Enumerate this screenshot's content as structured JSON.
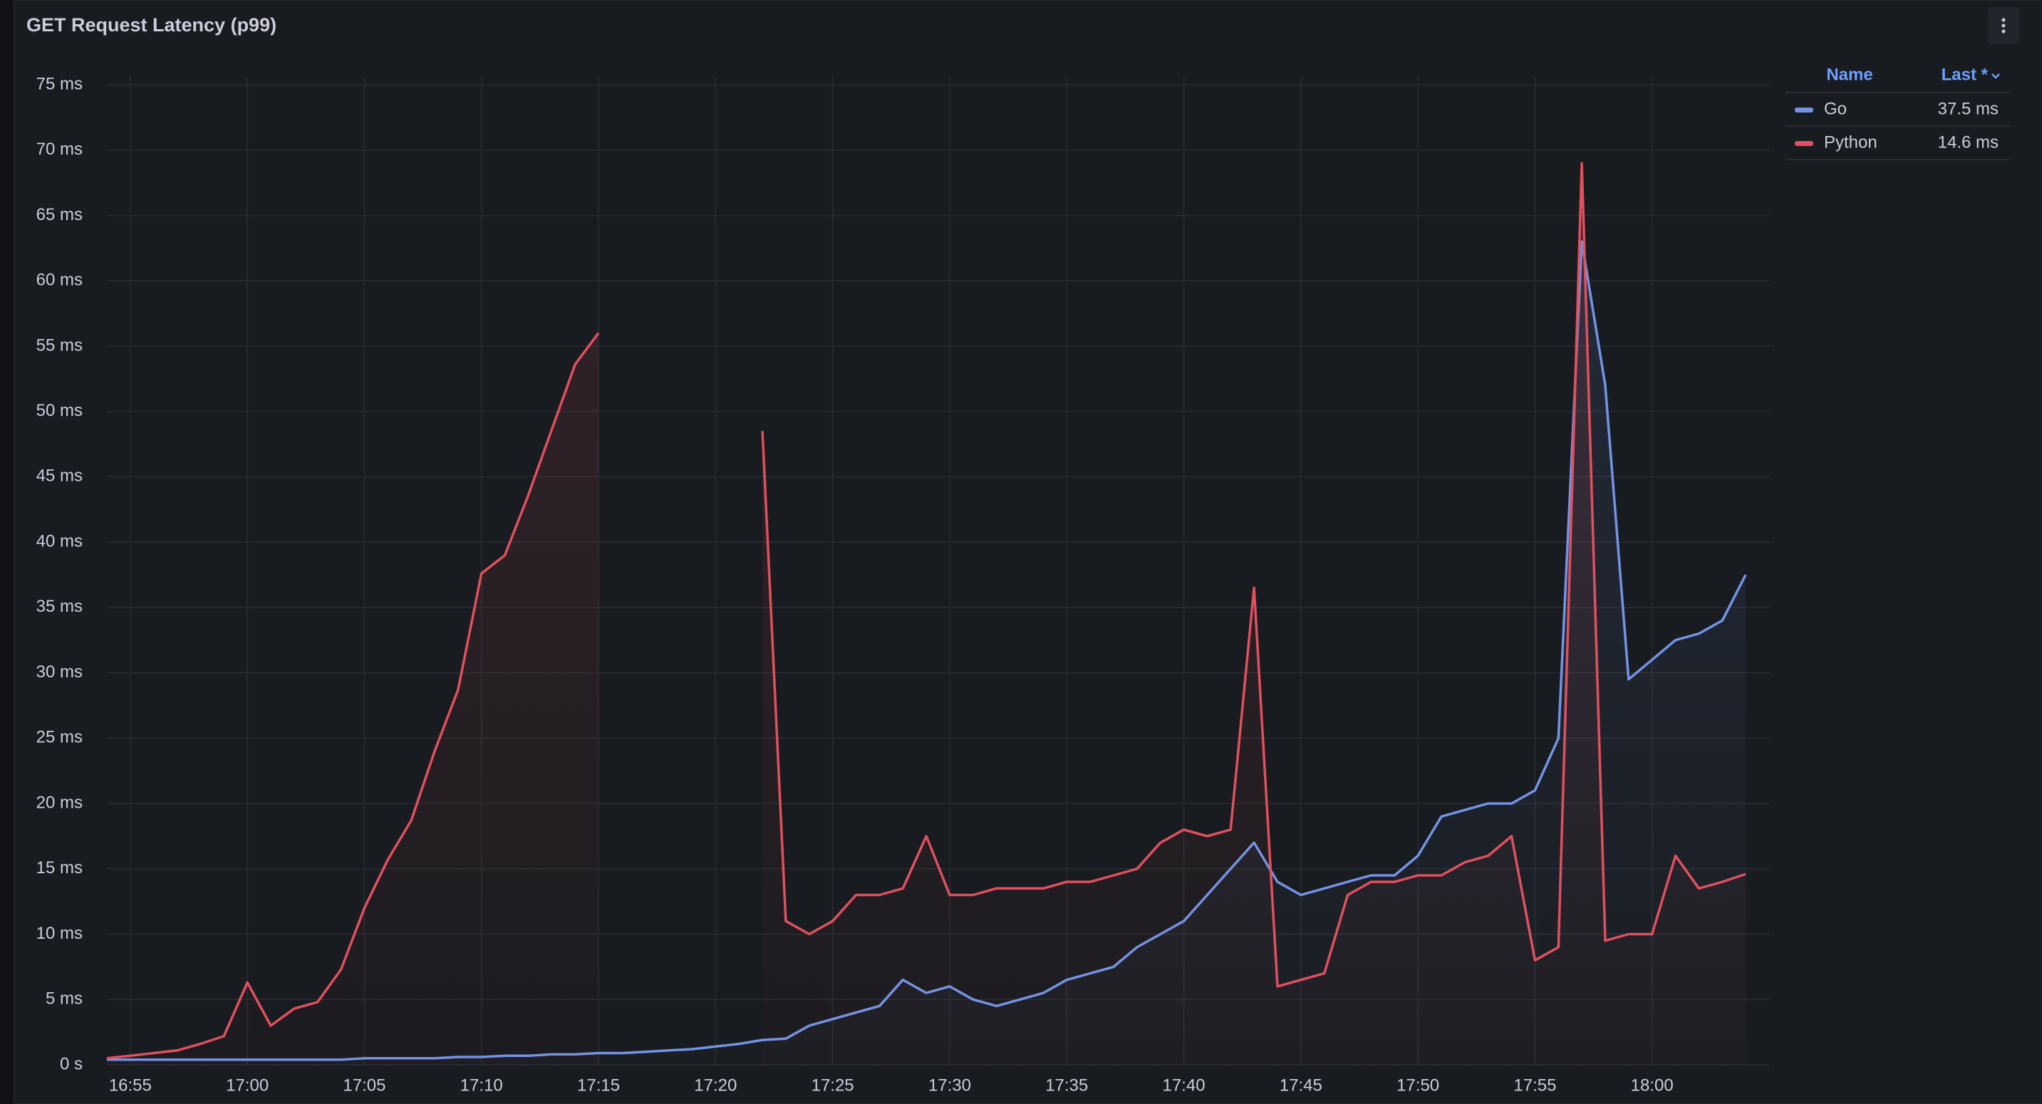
{
  "chart_data": {
    "type": "line",
    "title": "GET Request Latency (p99)",
    "x": [
      "16:54",
      "16:55",
      "16:56",
      "16:57",
      "16:58",
      "16:59",
      "17:00",
      "17:01",
      "17:02",
      "17:03",
      "17:04",
      "17:05",
      "17:06",
      "17:07",
      "17:08",
      "17:09",
      "17:10",
      "17:11",
      "17:12",
      "17:13",
      "17:14",
      "17:15",
      "17:16",
      "17:17",
      "17:18",
      "17:19",
      "17:20",
      "17:21",
      "17:22",
      "17:23",
      "17:24",
      "17:25",
      "17:26",
      "17:27",
      "17:28",
      "17:29",
      "17:30",
      "17:31",
      "17:32",
      "17:33",
      "17:34",
      "17:35",
      "17:36",
      "17:37",
      "17:38",
      "17:39",
      "17:40",
      "17:41",
      "17:42",
      "17:43",
      "17:44",
      "17:45",
      "17:46",
      "17:47",
      "17:48",
      "17:49",
      "17:50",
      "17:51",
      "17:52",
      "17:53",
      "17:54",
      "17:55",
      "17:56",
      "17:57",
      "17:58",
      "17:59",
      "18:00",
      "18:01",
      "18:02",
      "18:03",
      "18:04"
    ],
    "series": [
      {
        "name": "Go",
        "color": "#7394e6",
        "legend_value": {
          "value": 37.5,
          "label": "37.5 ms"
        },
        "values": [
          0.4,
          0.4,
          0.4,
          0.4,
          0.4,
          0.4,
          0.4,
          0.4,
          0.4,
          0.4,
          0.4,
          0.5,
          0.5,
          0.5,
          0.5,
          0.6,
          0.6,
          0.7,
          0.7,
          0.8,
          0.8,
          0.9,
          0.9,
          1,
          1.1,
          1.2,
          1.4,
          1.6,
          1.9,
          2,
          3,
          3.5,
          4,
          4.5,
          6.5,
          5.5,
          6,
          5,
          4.5,
          5,
          5.5,
          6.5,
          7,
          7.5,
          9,
          10,
          11,
          13,
          15,
          17,
          14,
          13,
          13.5,
          14,
          14.5,
          14.5,
          16,
          19,
          19.5,
          20,
          20,
          21,
          25,
          63,
          52,
          29.5,
          31,
          32.5,
          33,
          34,
          37.5
        ]
      },
      {
        "name": "Python",
        "color": "#e0505e",
        "legend_value": {
          "value": 14.6,
          "label": "14.6 ms"
        },
        "values": [
          0.5,
          0.7,
          0.9,
          1.1,
          1.6,
          2.2,
          6.3,
          3,
          4.3,
          4.8,
          7.3,
          12,
          15.7,
          18.7,
          24,
          28.7,
          37.6,
          39,
          43.6,
          48.6,
          53.6,
          56,
          null,
          null,
          null,
          null,
          null,
          null,
          48.5,
          11,
          10,
          11,
          13,
          13,
          13.5,
          17.5,
          13,
          13,
          13.5,
          13.5,
          13.5,
          14,
          14,
          14.5,
          15,
          17,
          18,
          17.5,
          18,
          36.5,
          6,
          6.5,
          7,
          13,
          14,
          14,
          14.5,
          14.5,
          15.5,
          16,
          17.5,
          8,
          9,
          69,
          9.5,
          10,
          10,
          16,
          13.5,
          14,
          14.6
        ]
      }
    ],
    "xlim": [
      "16:54",
      "18:05"
    ],
    "xticks": [
      "16:55",
      "17:00",
      "17:05",
      "17:10",
      "17:15",
      "17:20",
      "17:25",
      "17:30",
      "17:35",
      "17:40",
      "17:45",
      "17:50",
      "17:55",
      "18:00"
    ],
    "ylim": [
      0,
      75
    ],
    "yticks": [
      {
        "value": 0,
        "label": "0 s"
      },
      {
        "value": 5,
        "label": "5 ms"
      },
      {
        "value": 10,
        "label": "10 ms"
      },
      {
        "value": 15,
        "label": "15 ms"
      },
      {
        "value": 20,
        "label": "20 ms"
      },
      {
        "value": 25,
        "label": "25 ms"
      },
      {
        "value": 30,
        "label": "30 ms"
      },
      {
        "value": 35,
        "label": "35 ms"
      },
      {
        "value": 40,
        "label": "40 ms"
      },
      {
        "value": 45,
        "label": "45 ms"
      },
      {
        "value": 50,
        "label": "50 ms"
      },
      {
        "value": 55,
        "label": "55 ms"
      },
      {
        "value": 60,
        "label": "60 ms"
      },
      {
        "value": 65,
        "label": "65 ms"
      },
      {
        "value": 70,
        "label": "70 ms"
      },
      {
        "value": 75,
        "label": "75 ms"
      }
    ],
    "grid": true,
    "legend": {
      "position": "right",
      "headers": [
        "Name",
        "Last *"
      ]
    }
  }
}
